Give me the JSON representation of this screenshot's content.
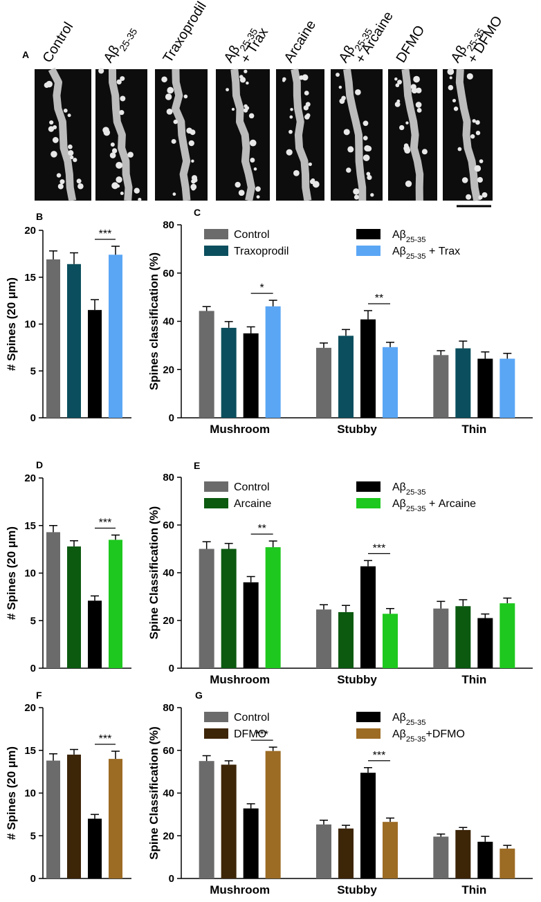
{
  "panel_a": {
    "label": "A",
    "conditions": [
      [
        "Control"
      ],
      [
        "Aβ25-35"
      ],
      [
        "Traxoprodil"
      ],
      [
        "Aβ25-35",
        "+ Trax"
      ],
      [
        "Arcaine"
      ],
      [
        "Aβ25-35",
        "+ Arcaine"
      ],
      [
        "DFMO"
      ],
      [
        "Aβ25-35",
        "+ DFMO"
      ]
    ]
  },
  "chart_data": [
    {
      "type": "bar",
      "panel": "B",
      "ylabel": "# Spines (20 μm)",
      "categories": [
        null
      ],
      "ylim": [
        0,
        20
      ],
      "yticks": [
        0,
        5,
        10,
        15,
        20
      ],
      "series": [
        {
          "color": "#6b6b6b",
          "values": [
            16.9
          ],
          "errors": [
            0.9
          ]
        },
        {
          "color": "#0b4f5e",
          "values": [
            16.4
          ],
          "errors": [
            1.2
          ]
        },
        {
          "color": "#000000",
          "values": [
            11.5
          ],
          "errors": [
            1.1
          ]
        },
        {
          "color": "#5aa6f5",
          "values": [
            17.4
          ],
          "errors": [
            0.9
          ],
          "significance": [
            "***"
          ]
        }
      ]
    },
    {
      "type": "bar",
      "panel": "C",
      "ylabel": "Spines classification (%)",
      "categories": [
        "Mushroom",
        "Stubby",
        "Thin"
      ],
      "ylim": [
        0,
        80
      ],
      "yticks": [
        0,
        20,
        40,
        60,
        80
      ],
      "series": [
        {
          "name": "Control",
          "color": "#6b6b6b",
          "values": [
            44.3,
            29,
            26
          ],
          "errors": [
            1.8,
            2,
            1.8
          ]
        },
        {
          "name": "Traxoprodil",
          "color": "#0b4f5e",
          "values": [
            37.3,
            34,
            28.8
          ],
          "errors": [
            2.6,
            2.6,
            3
          ]
        },
        {
          "name": "Aβ25-35",
          "color": "#000000",
          "values": [
            35,
            40.8,
            24.5
          ],
          "errors": [
            2.7,
            3.6,
            2.8
          ]
        },
        {
          "name": "Aβ25-35 + Trax",
          "color": "#5aa6f5",
          "values": [
            46.2,
            29.3,
            24.5
          ],
          "errors": [
            2.5,
            2,
            2.2
          ],
          "significance": [
            "*",
            "**",
            null
          ]
        }
      ]
    },
    {
      "type": "bar",
      "panel": "D",
      "ylabel": "# Spines (20 μm)",
      "categories": [
        null
      ],
      "ylim": [
        0,
        20
      ],
      "yticks": [
        0,
        5,
        10,
        15,
        20
      ],
      "series": [
        {
          "color": "#6b6b6b",
          "values": [
            14.3
          ],
          "errors": [
            0.7
          ]
        },
        {
          "color": "#0b5a10",
          "values": [
            12.8
          ],
          "errors": [
            0.6
          ]
        },
        {
          "color": "#000000",
          "values": [
            7.1
          ],
          "errors": [
            0.5
          ]
        },
        {
          "color": "#1ec81e",
          "values": [
            13.5
          ],
          "errors": [
            0.5
          ],
          "significance": [
            "***"
          ]
        }
      ]
    },
    {
      "type": "bar",
      "panel": "E",
      "ylabel": "Spine Classification (%)",
      "categories": [
        "Mushroom",
        "Stubby",
        "Thin"
      ],
      "ylim": [
        0,
        80
      ],
      "yticks": [
        0,
        20,
        40,
        60,
        80
      ],
      "series": [
        {
          "name": "Control",
          "color": "#6b6b6b",
          "values": [
            50,
            24.6,
            25
          ],
          "errors": [
            3,
            2,
            3
          ]
        },
        {
          "name": "Arcaine",
          "color": "#0b5a10",
          "values": [
            50,
            23.5,
            26
          ],
          "errors": [
            2.3,
            2.8,
            2.7
          ]
        },
        {
          "name": "Aβ25-35",
          "color": "#000000",
          "values": [
            36,
            42.7,
            21
          ],
          "errors": [
            2.4,
            2.4,
            1.7
          ]
        },
        {
          "name": "Aβ25-35 + Arcaine",
          "color": "#1ec81e",
          "values": [
            50.7,
            22.8,
            27.2
          ],
          "errors": [
            2.6,
            2.2,
            2.2
          ],
          "significance": [
            "**",
            "***",
            null
          ]
        }
      ]
    },
    {
      "type": "bar",
      "panel": "F",
      "ylabel": "# Spines (20 μm)",
      "categories": [
        null
      ],
      "ylim": [
        0,
        20
      ],
      "yticks": [
        0,
        5,
        10,
        15,
        20
      ],
      "series": [
        {
          "color": "#6b6b6b",
          "values": [
            13.8
          ],
          "errors": [
            0.8
          ]
        },
        {
          "color": "#3d2508",
          "values": [
            14.5
          ],
          "errors": [
            0.6
          ]
        },
        {
          "color": "#000000",
          "values": [
            7
          ],
          "errors": [
            0.5
          ]
        },
        {
          "color": "#9c6b24",
          "values": [
            14
          ],
          "errors": [
            0.9
          ],
          "significance": [
            "***"
          ]
        }
      ]
    },
    {
      "type": "bar",
      "panel": "G",
      "ylabel": "Spine Classification (%)",
      "categories": [
        "Mushroom",
        "Stubby",
        "Thin"
      ],
      "ylim": [
        0,
        80
      ],
      "yticks": [
        0,
        20,
        40,
        60,
        80
      ],
      "series": [
        {
          "name": "Control",
          "color": "#6b6b6b",
          "values": [
            55,
            25.3,
            19.6
          ],
          "errors": [
            2.5,
            2,
            1.2
          ]
        },
        {
          "name": "DFMO",
          "color": "#3d2508",
          "values": [
            53.3,
            23.4,
            22.7
          ],
          "errors": [
            1.8,
            1.5,
            1.2
          ]
        },
        {
          "name": "Aβ25-35",
          "color": "#000000",
          "values": [
            32.8,
            49.5,
            17.2
          ],
          "errors": [
            2.2,
            2.4,
            2.5
          ]
        },
        {
          "name": "Aβ25-35+DFMO",
          "color": "#9c6b24",
          "values": [
            59.7,
            26.5,
            14
          ],
          "errors": [
            1.8,
            1.8,
            1.5
          ],
          "significance": [
            "***",
            "***",
            null
          ]
        }
      ]
    }
  ]
}
